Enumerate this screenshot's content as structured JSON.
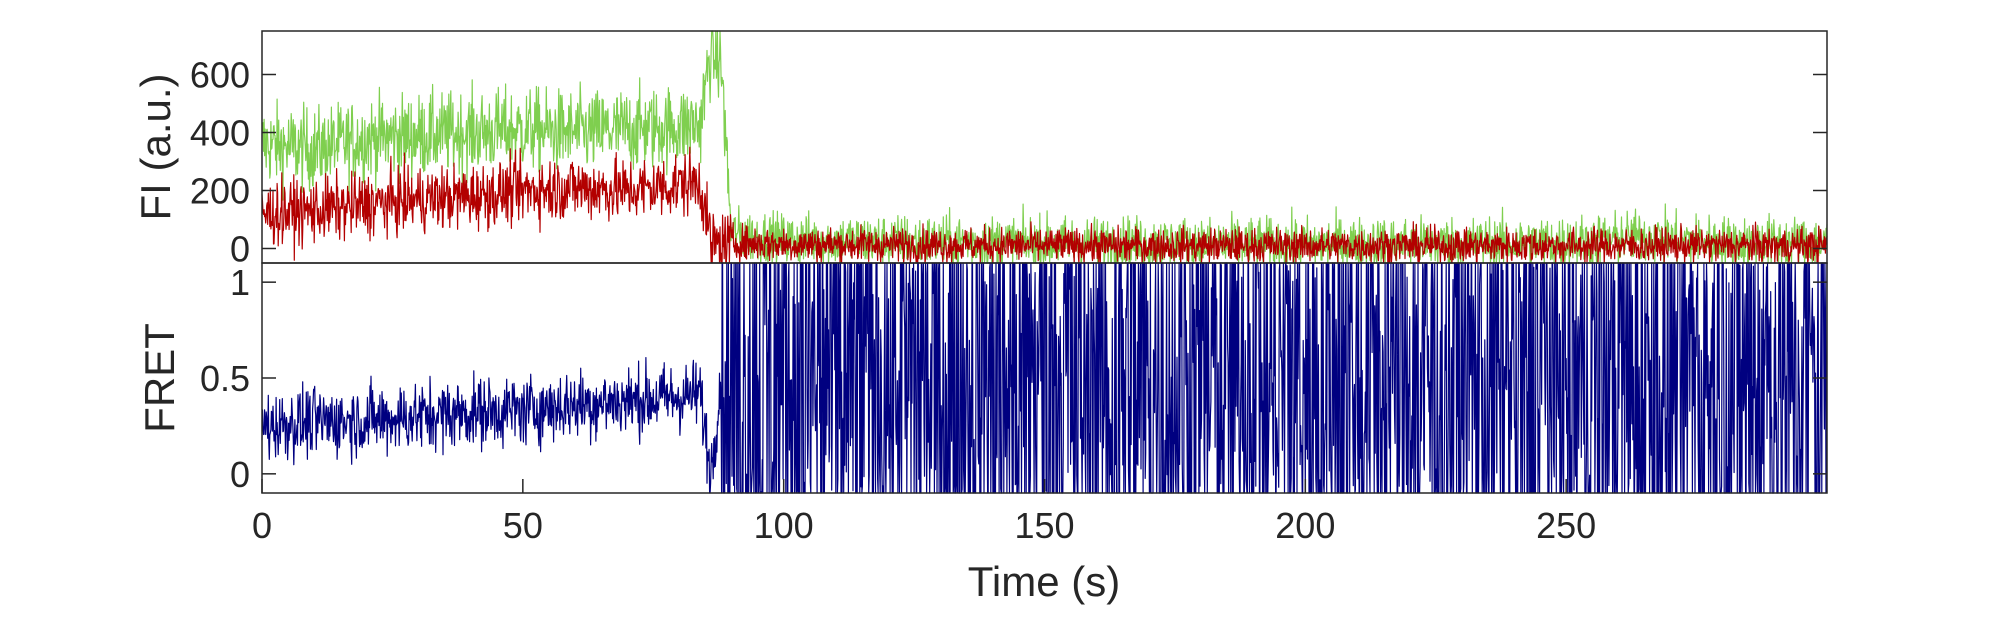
{
  "chart_data": [
    {
      "type": "line",
      "panel": "intensity",
      "ylabel": "FI (a.u.)",
      "xlabel": "",
      "xlim": [
        0,
        300
      ],
      "ylim": [
        -50,
        750
      ],
      "yticks": [
        0,
        200,
        400,
        600
      ],
      "ytick_labels": [
        "0",
        "200",
        "400",
        "600"
      ],
      "grid": false,
      "series": [
        {
          "role": "donor",
          "color": "#7fcf4f",
          "x": [
            0,
            10,
            20,
            30,
            40,
            50,
            60,
            70,
            80,
            84,
            86,
            88,
            90,
            100,
            150,
            200,
            250,
            265,
            280,
            300
          ],
          "values": [
            360,
            340,
            380,
            390,
            400,
            410,
            400,
            410,
            420,
            430,
            680,
            640,
            50,
            30,
            20,
            15,
            20,
            40,
            20,
            20
          ]
        },
        {
          "role": "acceptor",
          "color": "#b30000",
          "x": [
            0,
            10,
            20,
            30,
            40,
            50,
            60,
            70,
            80,
            84,
            86,
            88,
            90,
            100,
            150,
            200,
            250,
            300
          ],
          "values": [
            120,
            130,
            150,
            170,
            180,
            200,
            210,
            200,
            220,
            230,
            20,
            10,
            20,
            15,
            10,
            10,
            10,
            10
          ]
        }
      ]
    },
    {
      "type": "line",
      "panel": "fret",
      "ylabel": "FRET",
      "xlabel": "Time (s)",
      "xlim": [
        0,
        300
      ],
      "ylim": [
        -0.1,
        1.1
      ],
      "yticks": [
        0,
        0.5,
        1
      ],
      "ytick_labels": [
        "0",
        "0.5",
        "1"
      ],
      "xticks": [
        0,
        50,
        100,
        150,
        200,
        250
      ],
      "xtick_labels": [
        "0",
        "50",
        "100",
        "150",
        "200",
        "250"
      ],
      "grid": false,
      "series": [
        {
          "role": "fret",
          "color": "#000080",
          "x": [
            0,
            10,
            20,
            30,
            40,
            50,
            60,
            70,
            80,
            84,
            86,
            88,
            300
          ],
          "values": [
            0.25,
            0.27,
            0.28,
            0.3,
            0.32,
            0.33,
            0.36,
            0.38,
            0.4,
            0.42,
            0.0,
            0.5,
            0.5
          ],
          "noisy_after_x": 88
        }
      ]
    }
  ]
}
